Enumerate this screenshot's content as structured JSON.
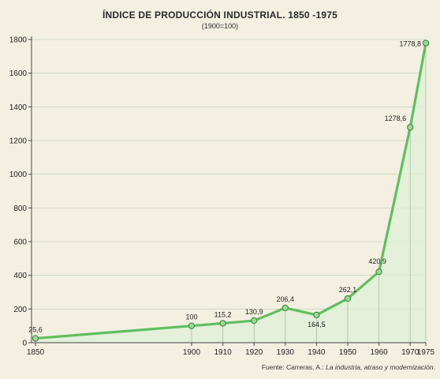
{
  "chart_data": {
    "type": "line",
    "title": "ÍNDICE DE PRODUCCIÓN INDUSTRIAL. 1850 -1975",
    "subtitle": "(1900=100)",
    "x": [
      1850,
      1900,
      1910,
      1920,
      1930,
      1940,
      1950,
      1960,
      1970,
      1975
    ],
    "x_tick_labels": [
      "1850",
      "1900",
      "1910",
      "1920",
      "1930",
      "1940",
      "1950",
      "1960",
      "1970",
      "1975"
    ],
    "values": [
      25.6,
      100,
      115.2,
      130.9,
      206.4,
      164.5,
      262.1,
      420.9,
      1278.6,
      1778.8
    ],
    "data_labels": [
      "25,6",
      "100",
      "115,2",
      "130,9",
      "206,4",
      "164,5",
      "262,1",
      "420,9",
      "1278,6",
      "1778,8"
    ],
    "y_ticks": [
      0,
      200,
      400,
      600,
      800,
      1000,
      1200,
      1400,
      1600,
      1800
    ],
    "y_tick_labels": [
      "0",
      "200",
      "400",
      "600",
      "800",
      "1000",
      "1200",
      "1400",
      "1600",
      "1800"
    ],
    "ylim": [
      0,
      1800
    ],
    "grid": true,
    "colors": {
      "line": "#5fbf5f",
      "area": "#dff0d6",
      "marker": "#9fd89a"
    },
    "source": {
      "prefix": "Fuente: Carreras, A.: ",
      "work": "La industria, atraso y modernización",
      "suffix": "."
    }
  }
}
